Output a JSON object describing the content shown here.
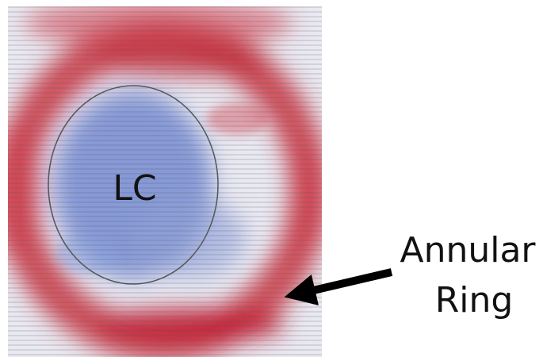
{
  "labels": {
    "center": "LC",
    "annotation": [
      "Annular",
      "Ring"
    ]
  }
}
